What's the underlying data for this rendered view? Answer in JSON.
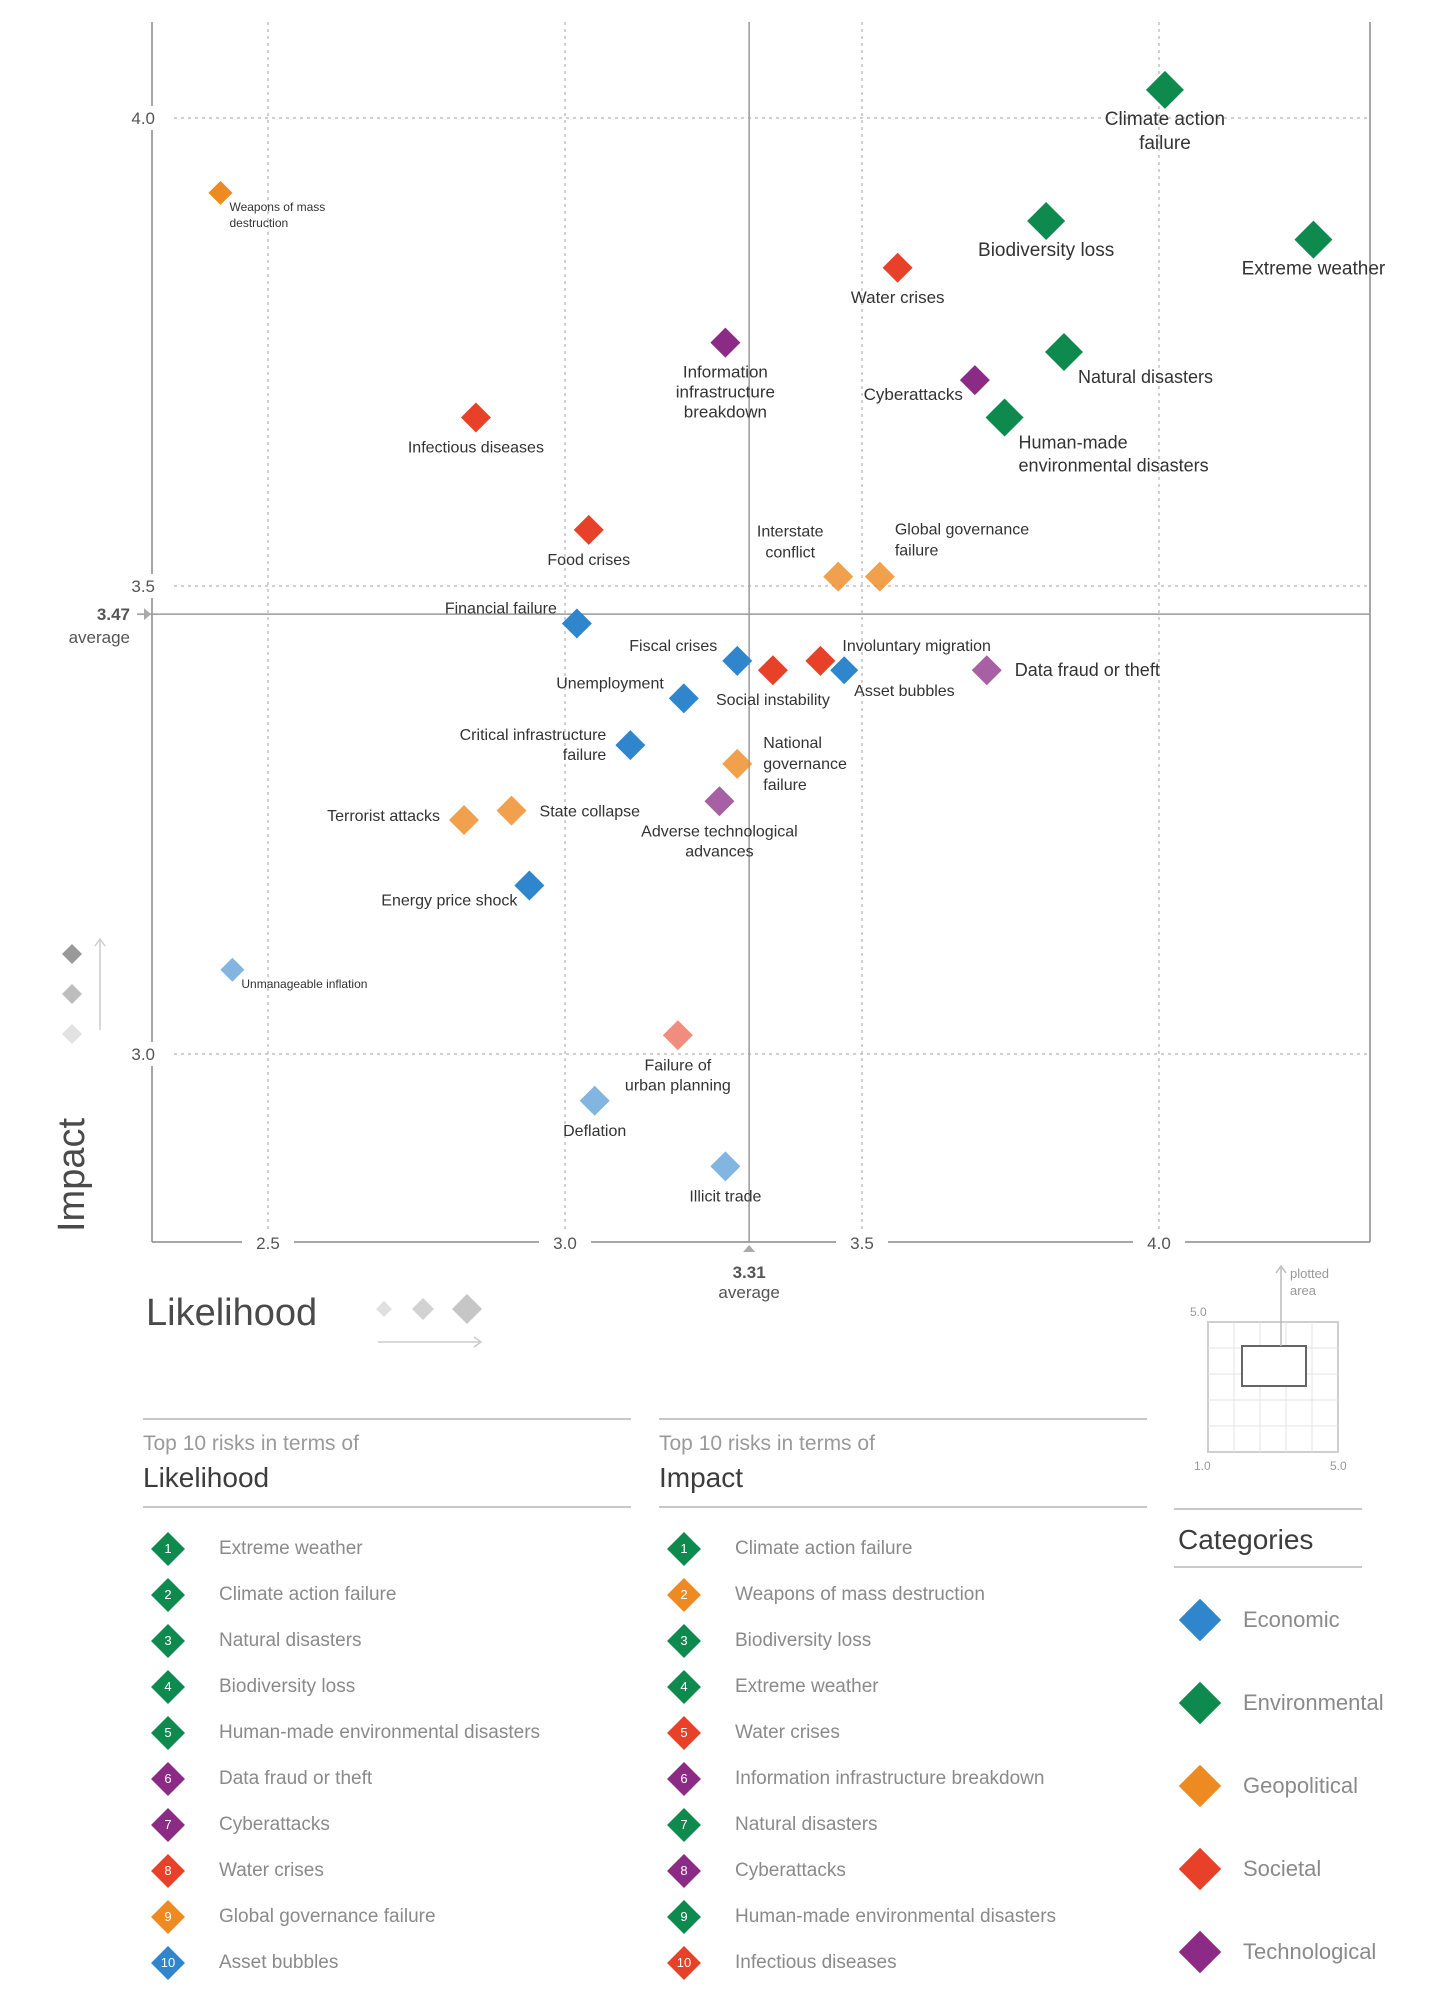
{
  "colors": {
    "Economic": "#2f86cc",
    "Environmental": "#0f8a4f",
    "Geopolitical": "#ee8a22",
    "Societal": "#e8412a",
    "Technological": "#8b2b86"
  },
  "chart_data": {
    "type": "scatter",
    "xlabel": "Likelihood",
    "ylabel": "Impact",
    "x_ticks": [
      "2.5",
      "3.0",
      "3.5",
      "4.0"
    ],
    "y_ticks": [
      "3.0",
      "3.5",
      "4.0"
    ],
    "xlim": [
      2.3,
      4.35
    ],
    "ylim": [
      2.8,
      4.1
    ],
    "grid": true,
    "average_likelihood": {
      "value": "3.31",
      "label": "average"
    },
    "average_impact": {
      "value": "3.47",
      "label": "average"
    },
    "points": [
      {
        "name": "Climate action failure",
        "label": [
          "Climate action",
          "failure"
        ],
        "category": "Environmental",
        "x": 4.01,
        "y": 4.03,
        "size": "l",
        "lp": "b"
      },
      {
        "name": "Extreme weather",
        "label": [
          "Extreme weather"
        ],
        "category": "Environmental",
        "x": 4.26,
        "y": 3.87,
        "size": "l",
        "lp": "b"
      },
      {
        "name": "Biodiversity loss",
        "label": [
          "Biodiversity loss"
        ],
        "category": "Environmental",
        "x": 3.81,
        "y": 3.89,
        "size": "l",
        "lp": "b"
      },
      {
        "name": "Water crises",
        "label": [
          "Water crises"
        ],
        "category": "Societal",
        "x": 3.56,
        "y": 3.84,
        "size": "m",
        "lp": "b"
      },
      {
        "name": "Weapons of mass destruction",
        "label": [
          "Weapons of mass",
          "destruction"
        ],
        "category": "Geopolitical",
        "x": 2.42,
        "y": 3.92,
        "size": "s",
        "lp": "sbr"
      },
      {
        "name": "Information infrastructure breakdown",
        "label": [
          "Information",
          "infrastructure",
          "breakdown"
        ],
        "category": "Technological",
        "x": 3.27,
        "y": 3.76,
        "size": "m",
        "lp": "b"
      },
      {
        "name": "Natural disasters",
        "label": [
          "Natural disasters"
        ],
        "category": "Environmental",
        "x": 3.84,
        "y": 3.75,
        "size": "l",
        "lp": "br"
      },
      {
        "name": "Cyberattacks",
        "label": [
          "Cyberattacks"
        ],
        "category": "Technological",
        "x": 3.69,
        "y": 3.72,
        "size": "m",
        "lp": "bl"
      },
      {
        "name": "Human-made environmental disasters",
        "label": [
          "Human-made",
          "environmental disasters"
        ],
        "category": "Environmental",
        "x": 3.74,
        "y": 3.68,
        "size": "l",
        "lp": "brl"
      },
      {
        "name": "Infectious diseases",
        "label": [
          "Infectious diseases"
        ],
        "category": "Societal",
        "x": 2.85,
        "y": 3.68,
        "size": "m",
        "lp": "b"
      },
      {
        "name": "Food crises",
        "label": [
          "Food crises"
        ],
        "category": "Societal",
        "x": 3.04,
        "y": 3.56,
        "size": "m",
        "lp": "b"
      },
      {
        "name": "Interstate conflict",
        "label": [
          "Interstate",
          "conflict"
        ],
        "category": "Geopolitical",
        "x": 3.46,
        "y": 3.51,
        "size": "m",
        "lp": "tl"
      },
      {
        "name": "Global governance failure",
        "label": [
          "Global governance",
          "failure"
        ],
        "category": "Geopolitical",
        "x": 3.53,
        "y": 3.51,
        "size": "m",
        "lp": "tr"
      },
      {
        "name": "Financial failure",
        "label": [
          "Financial failure"
        ],
        "category": "Economic",
        "x": 3.02,
        "y": 3.46,
        "size": "m",
        "lp": "tlw"
      },
      {
        "name": "Fiscal crises",
        "label": [
          "Fiscal crises"
        ],
        "category": "Economic",
        "x": 3.29,
        "y": 3.42,
        "size": "m",
        "lp": "tlw"
      },
      {
        "name": "Involuntary migration",
        "label": [
          "Involuntary migration"
        ],
        "category": "Societal",
        "x": 3.43,
        "y": 3.42,
        "size": "m",
        "lp": "tr2"
      },
      {
        "name": "Social instability",
        "label": [
          "Social instability"
        ],
        "category": "Societal",
        "x": 3.35,
        "y": 3.41,
        "size": "m",
        "lp": "b"
      },
      {
        "name": "Asset bubbles",
        "label": [
          "Asset bubbles"
        ],
        "category": "Economic",
        "x": 3.47,
        "y": 3.41,
        "size": "s2",
        "lp": "br2"
      },
      {
        "name": "Data fraud or theft",
        "label": [
          "Data fraud or theft"
        ],
        "category": "Technological",
        "x": 3.71,
        "y": 3.41,
        "size": "m",
        "lp": "r"
      },
      {
        "name": "Unemployment",
        "label": [
          "Unemployment"
        ],
        "category": "Economic",
        "x": 3.2,
        "y": 3.38,
        "size": "m",
        "lp": "tlw"
      },
      {
        "name": "Critical infrastructure failure",
        "label": [
          "Critical infrastructure",
          "failure"
        ],
        "category": "Economic",
        "x": 3.11,
        "y": 3.33,
        "size": "m",
        "lp": "lw"
      },
      {
        "name": "National governance failure",
        "label": [
          "National",
          "governance",
          "failure"
        ],
        "category": "Geopolitical",
        "x": 3.29,
        "y": 3.31,
        "size": "m",
        "lp": "rw"
      },
      {
        "name": "State collapse",
        "label": [
          "State collapse"
        ],
        "category": "Geopolitical",
        "x": 2.91,
        "y": 3.26,
        "size": "m",
        "lp": "r"
      },
      {
        "name": "Terrorist attacks",
        "label": [
          "Terrorist attacks"
        ],
        "category": "Geopolitical",
        "x": 2.83,
        "y": 3.25,
        "size": "m",
        "lp": "l"
      },
      {
        "name": "Adverse technological advances",
        "label": [
          "Adverse technological",
          "advances"
        ],
        "category": "Technological",
        "x": 3.26,
        "y": 3.27,
        "size": "m",
        "lp": "b"
      },
      {
        "name": "Energy price shock",
        "label": [
          "Energy price shock"
        ],
        "category": "Economic",
        "x": 2.94,
        "y": 3.18,
        "size": "m",
        "lp": "bl"
      },
      {
        "name": "Unmanageable inflation",
        "label": [
          "Unmanageable inflation"
        ],
        "category": "Economic",
        "x": 2.44,
        "y": 3.09,
        "size": "s",
        "lp": "sbr"
      },
      {
        "name": "Failure of urban planning",
        "label": [
          "Failure of",
          "urban planning"
        ],
        "category": "Societal",
        "x": 3.19,
        "y": 3.02,
        "size": "m",
        "lp": "b"
      },
      {
        "name": "Deflation",
        "label": [
          "Deflation"
        ],
        "category": "Economic",
        "x": 3.05,
        "y": 2.95,
        "size": "m",
        "lp": "b"
      },
      {
        "name": "Illicit trade",
        "label": [
          "Illicit trade"
        ],
        "category": "Economic",
        "x": 3.27,
        "y": 2.88,
        "size": "m",
        "lp": "b"
      }
    ]
  },
  "size_legend": {
    "label": "Likelihood"
  },
  "mini_map": {
    "top_value": "5.0",
    "bottom_left": "1.0",
    "bottom_right": "5.0",
    "label": [
      "plotted",
      "area"
    ]
  },
  "likelihood_list": {
    "subtitle": "Top 10 risks in terms of",
    "title": "Likelihood",
    "items": [
      {
        "rank": "1",
        "name": "Extreme weather",
        "category": "Environmental"
      },
      {
        "rank": "2",
        "name": "Climate action failure",
        "category": "Environmental"
      },
      {
        "rank": "3",
        "name": "Natural disasters",
        "category": "Environmental"
      },
      {
        "rank": "4",
        "name": "Biodiversity loss",
        "category": "Environmental"
      },
      {
        "rank": "5",
        "name": "Human-made environmental disasters",
        "category": "Environmental"
      },
      {
        "rank": "6",
        "name": "Data fraud or theft",
        "category": "Technological"
      },
      {
        "rank": "7",
        "name": "Cyberattacks",
        "category": "Technological"
      },
      {
        "rank": "8",
        "name": "Water crises",
        "category": "Societal"
      },
      {
        "rank": "9",
        "name": "Global governance failure",
        "category": "Geopolitical"
      },
      {
        "rank": "10",
        "name": "Asset bubbles",
        "category": "Economic"
      }
    ]
  },
  "impact_list": {
    "subtitle": "Top 10 risks in terms of",
    "title": "Impact",
    "items": [
      {
        "rank": "1",
        "name": "Climate action failure",
        "category": "Environmental"
      },
      {
        "rank": "2",
        "name": "Weapons of mass destruction",
        "category": "Geopolitical"
      },
      {
        "rank": "3",
        "name": "Biodiversity loss",
        "category": "Environmental"
      },
      {
        "rank": "4",
        "name": "Extreme weather",
        "category": "Environmental"
      },
      {
        "rank": "5",
        "name": "Water crises",
        "category": "Societal"
      },
      {
        "rank": "6",
        "name": "Information infrastructure breakdown",
        "category": "Technological"
      },
      {
        "rank": "7",
        "name": "Natural disasters",
        "category": "Environmental"
      },
      {
        "rank": "8",
        "name": "Cyberattacks",
        "category": "Technological"
      },
      {
        "rank": "9",
        "name": "Human-made environmental disasters",
        "category": "Environmental"
      },
      {
        "rank": "10",
        "name": "Infectious diseases",
        "category": "Societal"
      }
    ]
  },
  "categories": {
    "title": "Categories",
    "items": [
      "Economic",
      "Environmental",
      "Geopolitical",
      "Societal",
      "Technological"
    ]
  }
}
